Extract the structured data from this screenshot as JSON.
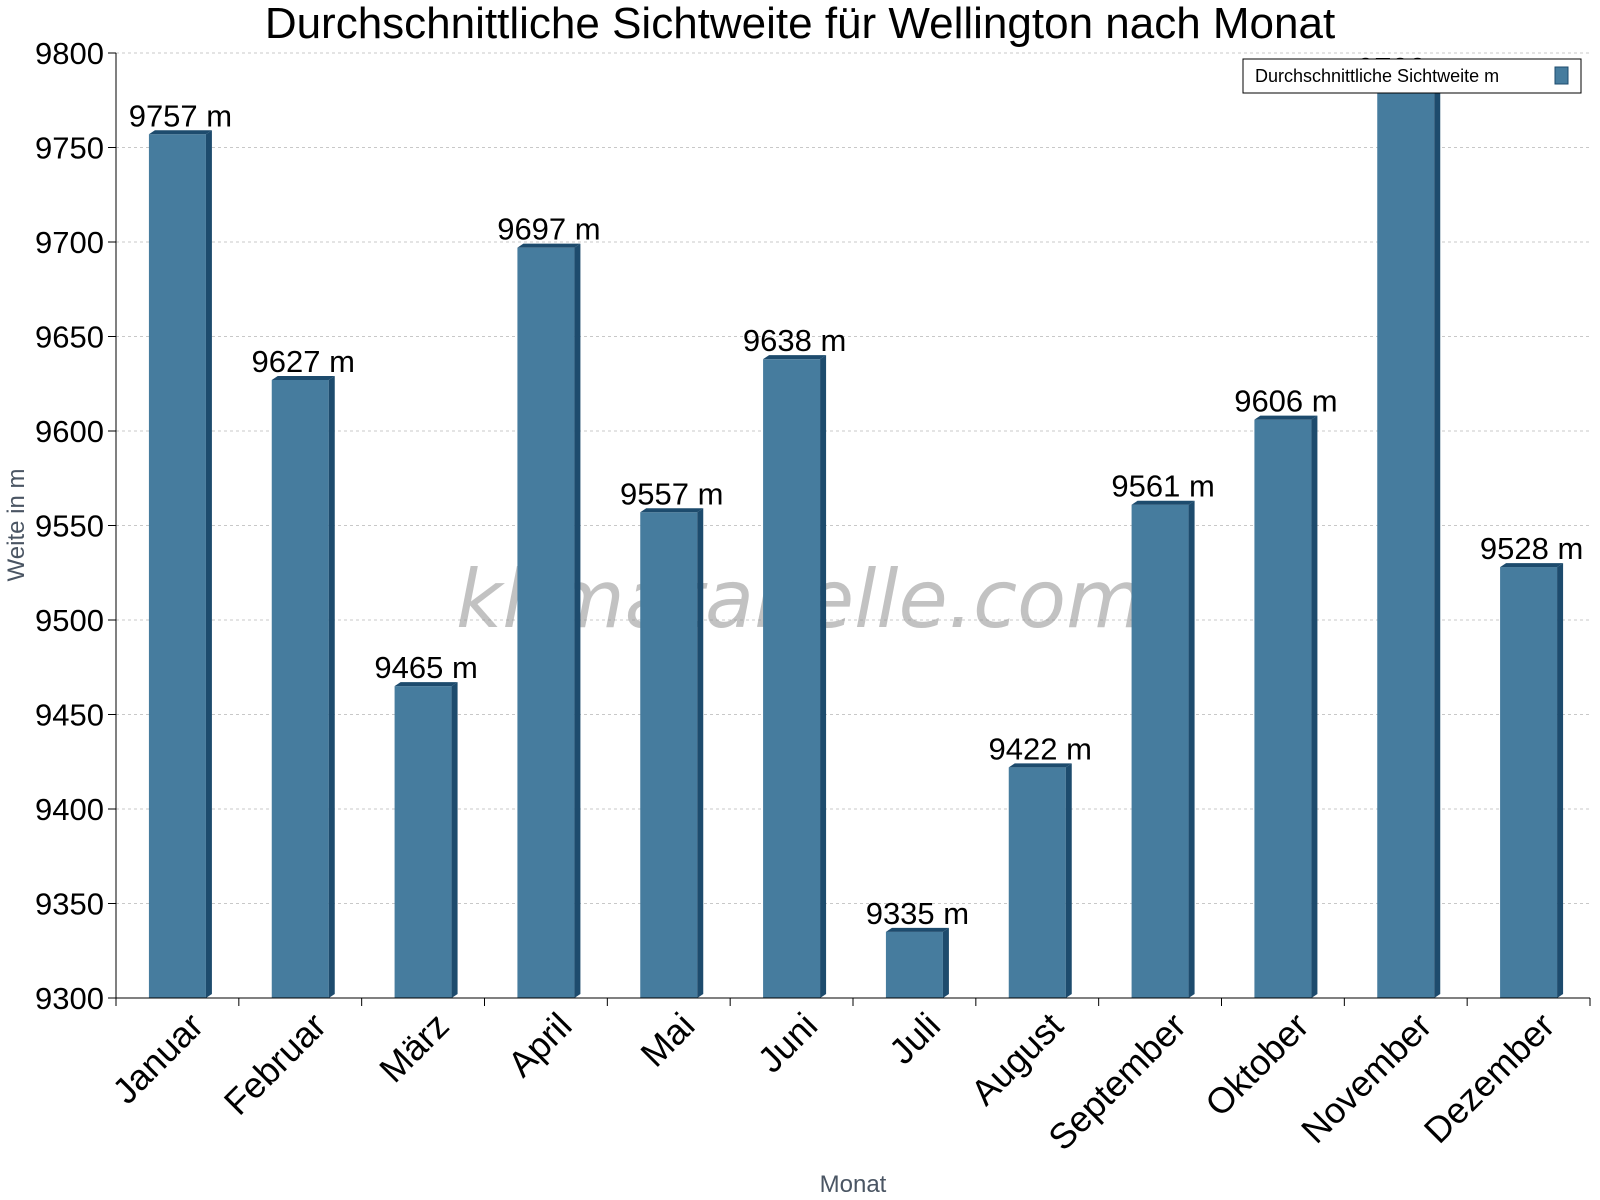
{
  "chart_data": {
    "type": "bar",
    "title": "Durchschnittliche Sichtweite für Wellington nach Monat",
    "xlabel": "Monat",
    "ylabel": "Weite in m",
    "ylim": [
      9300,
      9800
    ],
    "ytick_step": 50,
    "grid": true,
    "legend_position": "top-right",
    "categories": [
      "Januar",
      "Februar",
      "März",
      "April",
      "Mai",
      "Juni",
      "Juli",
      "August",
      "September",
      "Oktober",
      "November",
      "Dezember"
    ],
    "series": [
      {
        "name": "Durchschnittliche Sichtweite m",
        "values": [
          9757,
          9627,
          9465,
          9697,
          9557,
          9638,
          9335,
          9422,
          9561,
          9606,
          9782,
          9528
        ],
        "labels": [
          "9757 m",
          "9627 m",
          "9465 m",
          "9697 m",
          "9557 m",
          "9638 m",
          "9335 m",
          "9422 m",
          "9561 m",
          "9606 m",
          "9782 m",
          "9528 m"
        ],
        "color": "#467c9e",
        "side_color": "#1d4b6d"
      }
    ],
    "watermark": "klimatabelle.com"
  }
}
